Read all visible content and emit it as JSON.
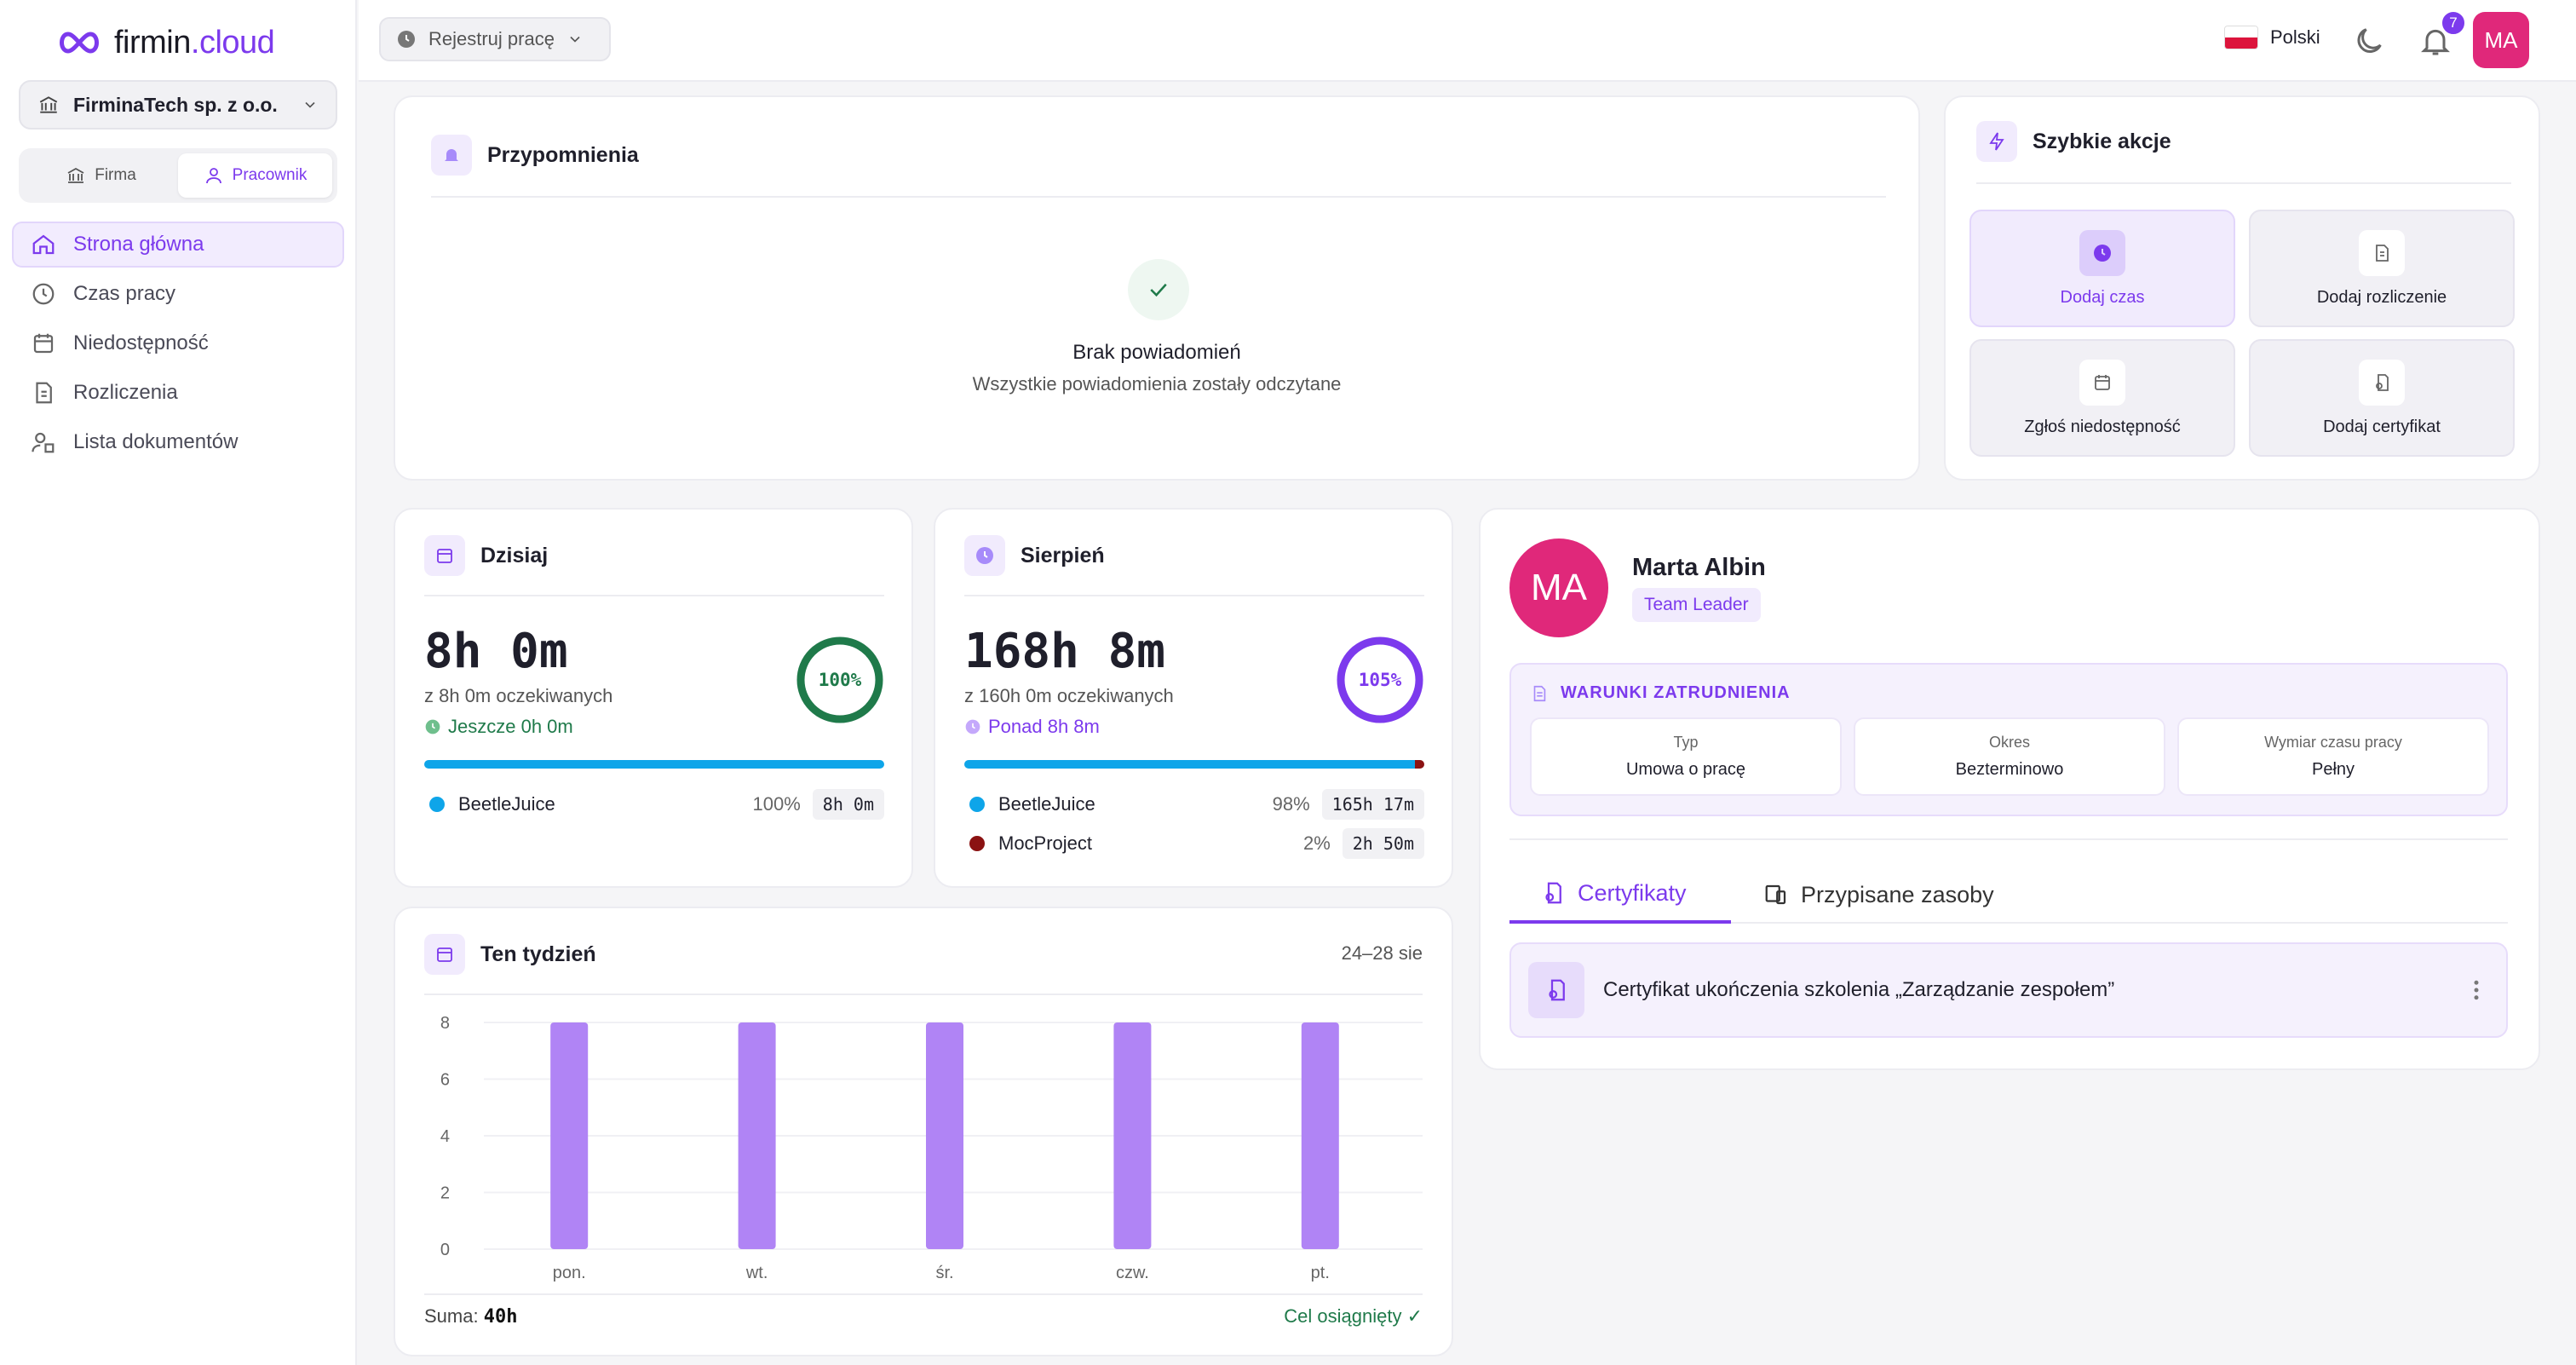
{
  "app": {
    "logo_main": "firmin",
    "logo_accent": ".cloud",
    "company": "FirminaTech sp. z o.o."
  },
  "roles": [
    {
      "label": "Firma",
      "active": false
    },
    {
      "label": "Pracownik",
      "active": true
    }
  ],
  "nav": [
    {
      "label": "Strona główna",
      "icon": "home-icon",
      "active": true
    },
    {
      "label": "Czas pracy",
      "icon": "clock-icon"
    },
    {
      "label": "Niedostępność",
      "icon": "calendar-icon"
    },
    {
      "label": "Rozliczenia",
      "icon": "invoice-icon"
    },
    {
      "label": "Lista dokumentów",
      "icon": "documents-icon"
    }
  ],
  "topbar": {
    "register_label": "Rejestruj pracę",
    "language": "Polski",
    "notifications": "7",
    "avatar": "MA"
  },
  "reminders": {
    "title": "Przypomnienia",
    "empty_title": "Brak powiadomień",
    "empty_sub": "Wszystkie powiadomienia zostały odczytane"
  },
  "quick_actions": {
    "title": "Szybkie akcje",
    "items": [
      "Dodaj czas",
      "Dodaj rozliczenie",
      "Zgłoś niedostępność",
      "Dodaj certyfikat"
    ]
  },
  "today": {
    "title": "Dzisiaj",
    "total": "8h 0m",
    "expected": "z 8h 0m oczekiwanych",
    "delta": "Jeszcze 0h 0m",
    "percent_label": "100%",
    "percent": 100,
    "projects": [
      {
        "name": "BeetleJuice",
        "pct": "100%",
        "time": "8h 0m",
        "color": "#0ea5e9",
        "share": 100
      }
    ]
  },
  "month": {
    "title": "Sierpień",
    "total": "168h 8m",
    "expected": "z 160h 0m oczekiwanych",
    "delta": "Ponad 8h 8m",
    "percent_label": "105%",
    "percent": 105,
    "projects": [
      {
        "name": "BeetleJuice",
        "pct": "98%",
        "time": "165h 17m",
        "color": "#0ea5e9",
        "share": 98
      },
      {
        "name": "MocProject",
        "pct": "2%",
        "time": "2h 50m",
        "color": "#8b1212",
        "share": 2
      }
    ]
  },
  "week": {
    "title": "Ten tydzień",
    "range": "24–28 sie",
    "sum_label": "Suma:",
    "sum_value": "40h",
    "goal": "Cel osiągnięty ✓"
  },
  "chart_data": {
    "type": "bar",
    "categories": [
      "pon.",
      "wt.",
      "śr.",
      "czw.",
      "pt."
    ],
    "values": [
      8,
      8,
      8,
      8,
      8
    ],
    "ylim": [
      0,
      8
    ],
    "yticks": [
      0,
      2,
      4,
      6,
      8
    ],
    "grid": true,
    "color": "#b084f5"
  },
  "profile": {
    "initials": "MA",
    "name": "Marta Albin",
    "role": "Team Leader",
    "employment_title": "WARUNKI ZATRUDNIENIA",
    "employment": [
      {
        "label": "Typ",
        "value": "Umowa o pracę"
      },
      {
        "label": "Okres",
        "value": "Bezterminowo"
      },
      {
        "label": "Wymiar czasu pracy",
        "value": "Pełny"
      }
    ],
    "tabs": [
      "Certyfikaty",
      "Przypisane zasoby"
    ],
    "certificate": "Certyfikat ukończenia szkolenia „Zarządzanie zespołem”"
  },
  "colors": {
    "accent": "#7c3aed",
    "success": "#1f7a4a",
    "avatar": "#e0287a"
  }
}
